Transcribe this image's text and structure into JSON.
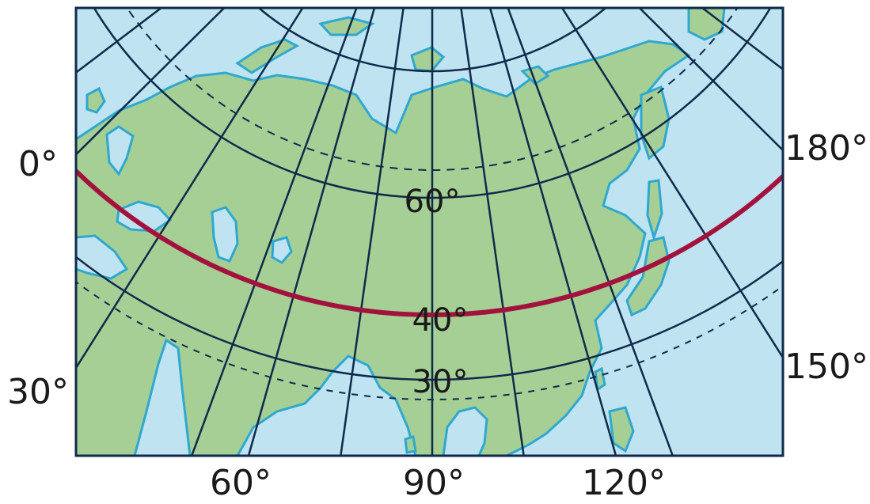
{
  "labels": {
    "lon_60": "60°",
    "lon_90": "90°",
    "lon_120": "120°",
    "left_0": "0°",
    "left_30": "30°",
    "right_180": "180°",
    "right_150": "150°",
    "lat_60": "60°",
    "lat_40": "40°",
    "lat_30": "30°"
  },
  "colors": {
    "ocean": "#bfe3f1",
    "land": "#a6cf96",
    "land_outline": "#2fa8cf",
    "grid": "#0f2a4a",
    "highlight_parallel": "#a3123d",
    "frame": "#0f2a4a"
  },
  "highlighted_parallel": "40°",
  "dashed_parallels": [
    "66.5°",
    "23.5°"
  ]
}
